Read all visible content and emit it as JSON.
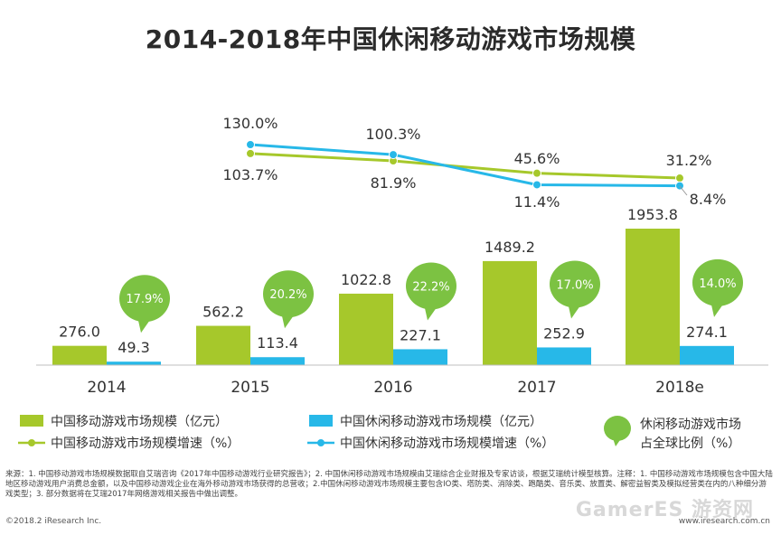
{
  "title": "2014-2018年中国休闲移动游戏市场规模",
  "chart_data": {
    "type": "bar",
    "categories": [
      "2014",
      "2015",
      "2016",
      "2017",
      "2018e"
    ],
    "series": [
      {
        "name": "中国移动游戏市场规模（亿元）",
        "kind": "bar",
        "color": "#a6c82b",
        "values": [
          276.0,
          562.2,
          1022.8,
          1489.2,
          1953.8
        ],
        "labels": [
          "276.0",
          "562.2",
          "1022.8",
          "1489.2",
          "1953.8"
        ]
      },
      {
        "name": "中国休闲移动游戏市场规模（亿元）",
        "kind": "bar",
        "color": "#27b8e8",
        "values": [
          49.3,
          113.4,
          227.1,
          252.9,
          274.1
        ],
        "labels": [
          "49.3",
          "113.4",
          "227.1",
          "252.9",
          "274.1"
        ]
      },
      {
        "name": "中国移动游戏市场规模增速（%）",
        "kind": "line",
        "color": "#a6c82b",
        "values": [
          null,
          103.7,
          81.9,
          45.6,
          31.2
        ],
        "labels": [
          "",
          "103.7%",
          "81.9%",
          "45.6%",
          "31.2%"
        ]
      },
      {
        "name": "中国休闲移动游戏市场规模增速（%）",
        "kind": "line",
        "color": "#27b8e8",
        "values": [
          null,
          130.0,
          100.3,
          11.4,
          8.4
        ],
        "labels": [
          "",
          "130.0%",
          "100.3%",
          "11.4%",
          "8.4%"
        ]
      },
      {
        "name": "休闲移动游戏市场占全球比例（%）",
        "kind": "bubble",
        "color": "#7cc242",
        "values": [
          17.9,
          20.2,
          22.2,
          17.0,
          14.0
        ],
        "labels": [
          "17.9%",
          "20.2%",
          "22.2%",
          "17.0%",
          "14.0%"
        ]
      }
    ],
    "legend": [
      "中国移动游戏市场规模（亿元）",
      "中国休闲移动游戏市场规模（亿元）",
      "中国移动游戏市场规模增速（%）",
      "中国休闲移动游戏市场规模增速（%）",
      "休闲移动游戏市场",
      "占全球比例（%）"
    ],
    "xlabel": "",
    "ylabel": "",
    "legend_position": "bottom"
  },
  "note": "来源：1. 中国移动游戏市场规模数据取自艾瑞咨询《2017年中国移动游戏行业研究报告》；2. 中国休闲移动游戏市场规模由艾瑞综合企业财报及专家访谈，根据艾瑞统计模型核算。注释：1. 中国移动游戏市场规模包含中国大陆地区移动游戏用户消费总金额，以及中国移动游戏企业在海外移动游戏市场获得的总营收；2.中国休闲移动游戏市场规模主要包含IO类、塔防类、消除类、跑酷类、音乐类、放置类、解密益智类及模拟经营类在内的八种细分游戏类型；3. 部分数据将在艾瑞2017年网络游戏相关报告中做出调整。",
  "footer_left": "©2018.2 iResearch Inc.",
  "footer_right": "www.iresearch.com.cn",
  "watermark": "GamerES 游资网"
}
